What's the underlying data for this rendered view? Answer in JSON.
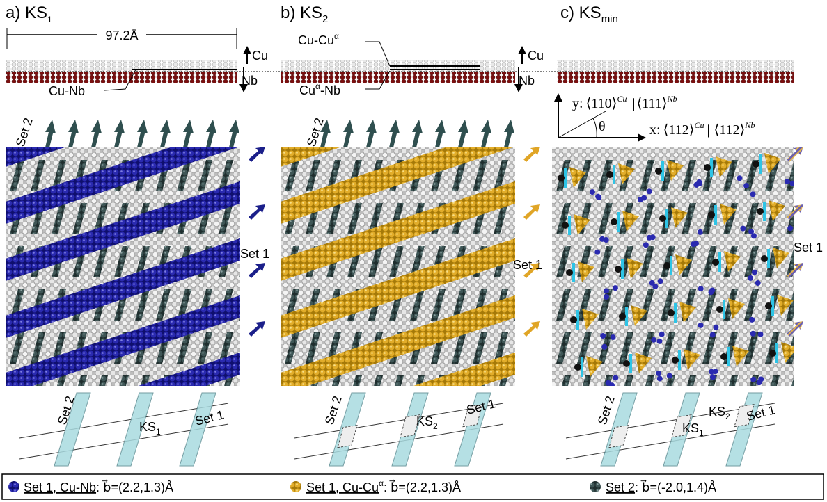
{
  "panels": [
    {
      "title": "a) KS",
      "title_sub": "1",
      "set2": "Set 2",
      "set1": "Set 1",
      "schematic": {
        "set2": "Set 2",
        "interface": "KS",
        "interface_sub": "1",
        "set1": "Set 1"
      }
    },
    {
      "title": "b) KS",
      "title_sub": "2",
      "set2": "Set 2",
      "set1": "Set 1",
      "schematic": {
        "set2": "Set 2",
        "interface": "KS",
        "interface_sub": "2",
        "set1": "Set 1"
      }
    },
    {
      "title": "c) KS",
      "title_sub": "min",
      "set1": "Set 1",
      "schematic": {
        "set2": "Set 2",
        "interface": "KS",
        "interface_sub": "1",
        "interface2": "KS",
        "interface2_sub": "2",
        "set1": "Set 1"
      }
    }
  ],
  "top": {
    "width_label": "97.2Å",
    "separators": [
      {
        "cu": "Cu",
        "nb": "Nb"
      },
      {
        "cu": "Cu",
        "nb": "Nb"
      }
    ],
    "a_interface": "Cu-Nb",
    "b_upper": "Cu-Cu",
    "b_upper_sup": "α",
    "b_lower": "Cu",
    "b_lower_sup": "α",
    "b_lower_rest": "-Nb"
  },
  "axes": {
    "y": {
      "prefix": "y:",
      "cu": "⟨110⟩",
      "cu_sup": "Cu",
      "sep": "||",
      "nb": "⟨111⟩",
      "nb_sup": "Nb"
    },
    "x": {
      "prefix": "x:",
      "cu": "⟨112⟩",
      "cu_sup": "Cu",
      "sep": "||",
      "nb": "⟨112⟩",
      "nb_sup": "Nb"
    },
    "angle": "θ"
  },
  "legend": [
    {
      "label": "Set 1, Cu-Nb",
      "burgers": ": b⃗=(2.2,1.3)Å"
    },
    {
      "label": "Set 1, Cu-Cu",
      "label_sup": "α",
      "burgers": ": b⃗=(2.2,1.3)Å"
    },
    {
      "label": "Set 2",
      "burgers": ": b⃗=(-2.0,1.4)Å"
    }
  ]
}
